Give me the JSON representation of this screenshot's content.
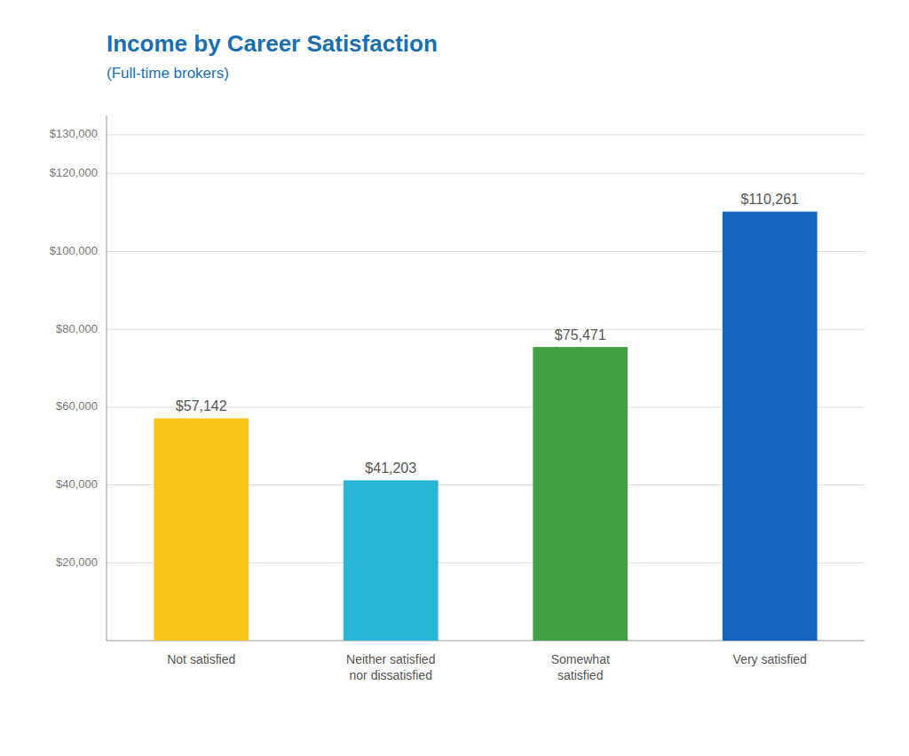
{
  "chart_data": {
    "type": "bar",
    "title": "Income by Career Satisfaction",
    "subtitle": "(Full-time brokers)",
    "categories": [
      "Not satisfied",
      "Neither satisfied\nnor dissatisfied",
      "Somewhat\nsatisfied",
      "Very satisfied"
    ],
    "values": [
      57142,
      41203,
      75471,
      110261
    ],
    "value_labels": [
      "$57,142",
      "$41,203",
      "$75,471",
      "$110,261"
    ],
    "colors": [
      "#f9c51a",
      "#29b6d5",
      "#43a047",
      "#1565c0"
    ],
    "ylim": [
      0,
      135000
    ],
    "yticks": [
      {
        "value": 20000,
        "label": "$20,000"
      },
      {
        "value": 40000,
        "label": "$40,000"
      },
      {
        "value": 60000,
        "label": "$60,000"
      },
      {
        "value": 80000,
        "label": "$80,000"
      },
      {
        "value": 100000,
        "label": "$100,000"
      },
      {
        "value": 120000,
        "label": "$120,000"
      },
      {
        "value": 130000,
        "label": "$130,000"
      }
    ],
    "grid": true,
    "data_labels": true
  }
}
